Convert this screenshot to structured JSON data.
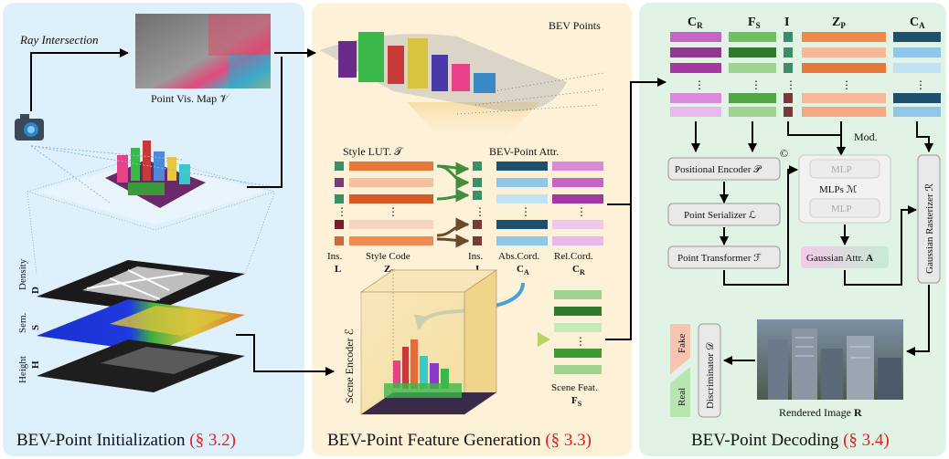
{
  "panels": {
    "init": {
      "title": "BEV-Point Initialization",
      "ref": "(§ 3.2)",
      "bg": "#ddf0fb"
    },
    "gen": {
      "title": "BEV-Point Feature Generation",
      "ref": "(§ 3.3)",
      "bg": "#fdf1d8"
    },
    "dec": {
      "title": "BEV-Point Decoding",
      "ref": "(§ 3.4)",
      "bg": "#e1f3e4"
    }
  },
  "init": {
    "ray_label": "Ray Intersection",
    "vis_map_label": "Point Vis. Map 𝒱",
    "layers": [
      {
        "line1": "Density",
        "line2": "D"
      },
      {
        "line1": "Sem.",
        "line2": "S"
      },
      {
        "line1": "Height",
        "line2": "H"
      }
    ]
  },
  "gen": {
    "bev_points_label": "BEV Points",
    "style_lut_label": "Style LUT. 𝒯",
    "bev_attr_label": "BEV-Point Attr.",
    "ellipsis": "⋮",
    "col_labels": [
      {
        "line1": "Ins.",
        "line2": "L"
      },
      {
        "line1": "Style Code",
        "line2": "Z",
        "sub": "T"
      },
      {
        "line1": "Ins.",
        "line2": "I"
      },
      {
        "line1": "Abs.Cord.",
        "line2": "C",
        "sub": "A"
      },
      {
        "line1": "Rel.Cord.",
        "line2": "C",
        "sub": "R"
      }
    ],
    "scene_encoder_label": "Scene Encoder ℰ",
    "scene_feat": {
      "line1": "Scene Feat.",
      "line2": "F",
      "sub": "S"
    }
  },
  "dec": {
    "headers": [
      {
        "main": "C",
        "sub": "R"
      },
      {
        "main": "F",
        "sub": "S"
      },
      {
        "main": "I",
        "sub": ""
      },
      {
        "main": "Z",
        "sub": "P"
      },
      {
        "main": "C",
        "sub": "A"
      }
    ],
    "positional_encoder": "Positional Encoder 𝒫",
    "point_serializer": "Point Serializer ℒ",
    "point_transformer": "Point Transformer ℱ",
    "mlp_label": "MLP",
    "mlps_label": "MLPs ℳ",
    "mod_label": "Mod.",
    "gaussian_attr": {
      "text": "Gaussian Attr.",
      "bold": "A"
    },
    "gaussian_rasterizer": "Gaussian Rasterizer ℛ",
    "concat_symbol": "©",
    "discriminator": "Discriminator 𝒟",
    "fake_label": "Fake",
    "real_label": "Real",
    "rendered_image": {
      "text": "Rendered Image",
      "bold": "R"
    }
  },
  "colors": {
    "cr": [
      "#c565c8",
      "#8e3a8e",
      "#a33aa3",
      "#e8b8ec"
    ],
    "fs": [
      "#6dc15f",
      "#2f7a2c",
      "#9ed490",
      "#4fa646"
    ],
    "ins": [
      "#3b8e6a",
      "#7a3a7a",
      "#3b8e6a",
      "#7a3a3a"
    ],
    "zp": [
      "#f08a4b",
      "#f5b89a",
      "#e8773a",
      "#f3a882"
    ],
    "ca": [
      "#1d4f6e",
      "#8ec7e8",
      "#bfe3f3",
      "#1d4f6e"
    ],
    "gaussian_attr_grad": [
      "#f3c9e8",
      "#c5ecd3"
    ]
  }
}
